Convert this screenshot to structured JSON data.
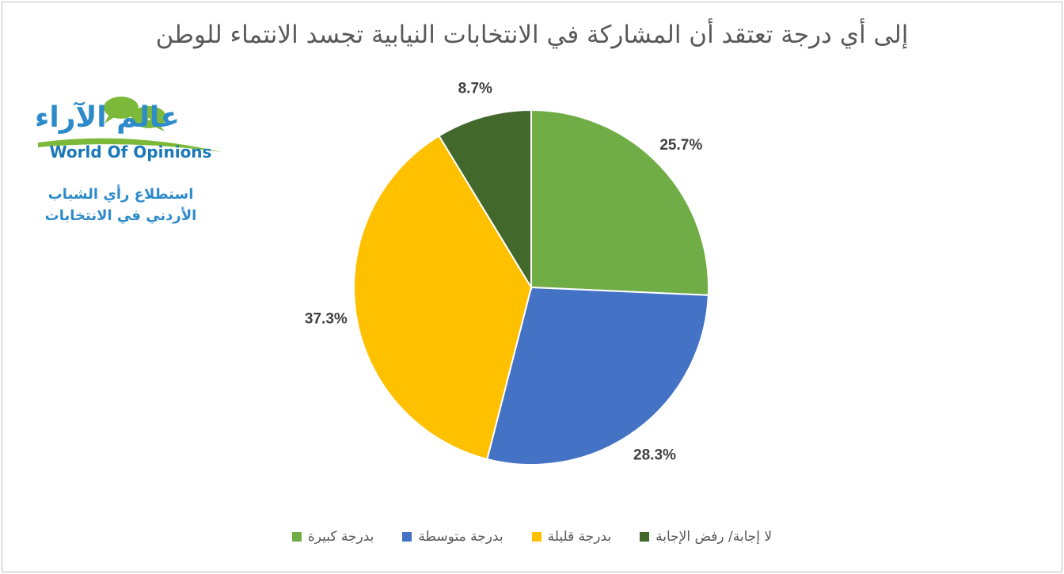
{
  "chart_data": {
    "type": "pie",
    "title": "إلى أي درجة تعتقد أن المشاركة في الانتخابات النيابية تجسد الانتماء للوطن",
    "categories": [
      "بدرجة كبيرة",
      "بدرجة متوسطة",
      "بدرجة قليلة",
      "لا إجابة/ رفض الإجابة"
    ],
    "values": [
      25.7,
      28.3,
      37.3,
      8.7
    ],
    "data_labels": [
      "25.7%",
      "28.3%",
      "37.3%",
      "8.7%"
    ],
    "colors": [
      "#70ad47",
      "#4472c4",
      "#ffc000",
      "#43682b"
    ],
    "start_angle_deg": 0,
    "direction": "clockwise",
    "legend_position": "bottom"
  },
  "logo": {
    "arabic_text": "عالم الآراء",
    "english_text": "World Of Opinions",
    "bubble_text": "...",
    "colors": {
      "bubble": "#7cb93b",
      "text": "#2e8bc9",
      "swoosh": "#7cb93b"
    }
  },
  "subtitle": {
    "line1": "استطلاع رأي الشباب",
    "line2": "الأردني في الانتخابات"
  }
}
